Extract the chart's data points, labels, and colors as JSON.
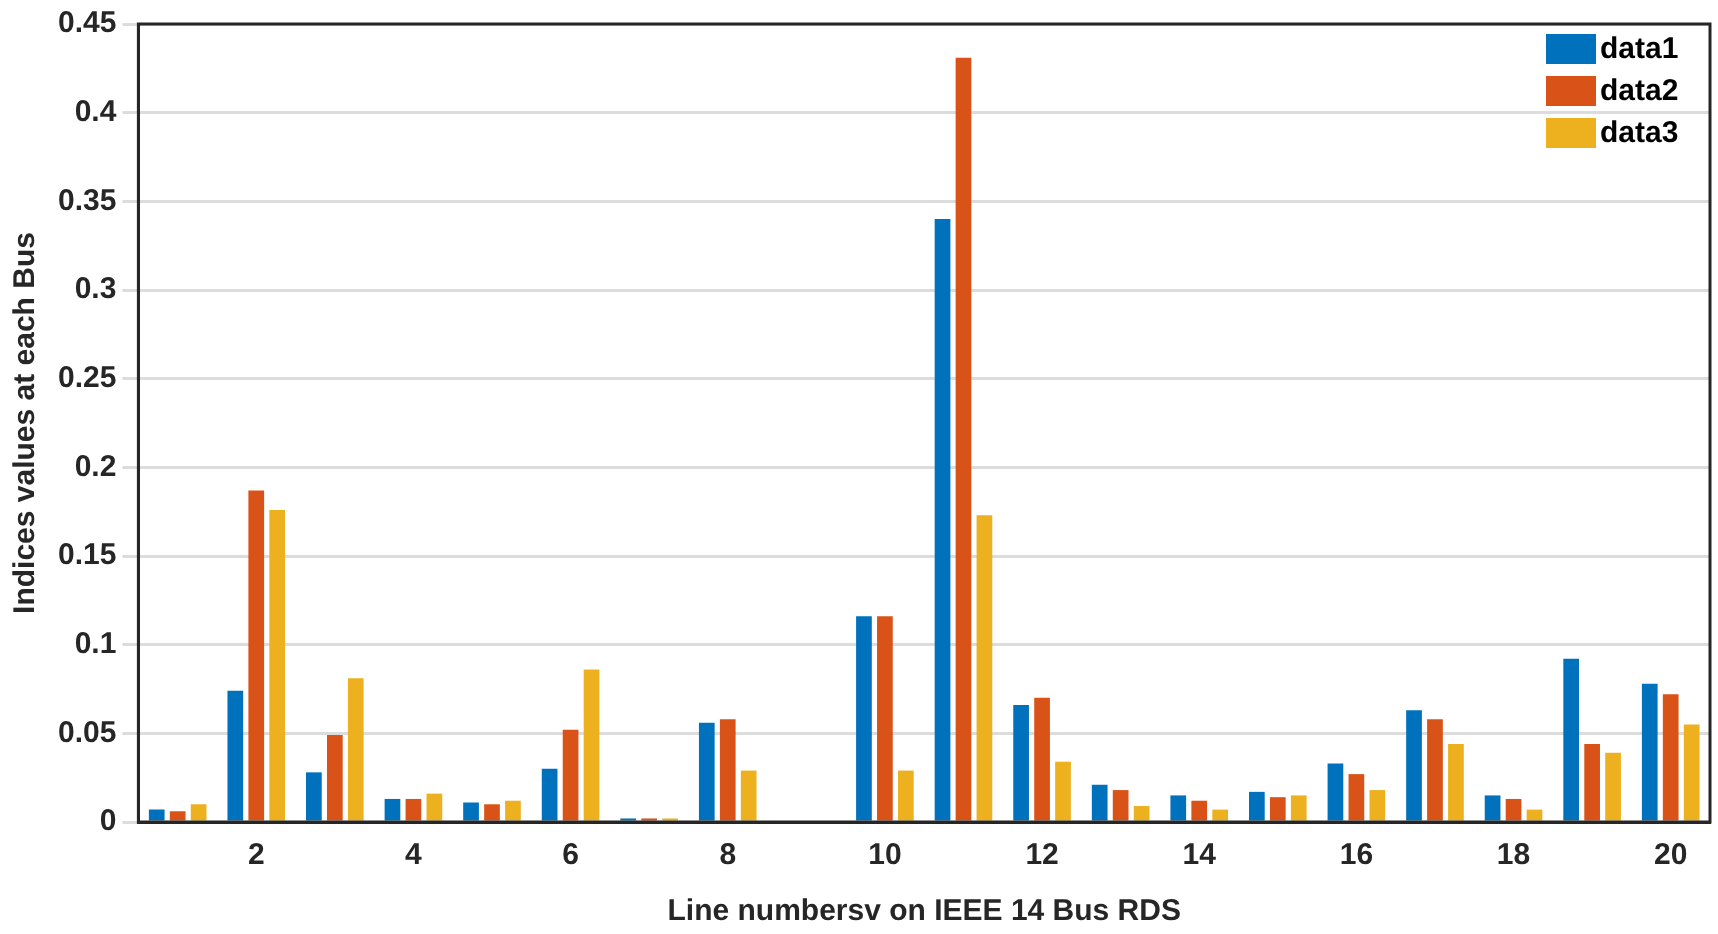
{
  "chart_data": {
    "type": "bar",
    "xlabel": "Line numbersv on IEEE 14 Bus RDS",
    "ylabel": "Indices values at each Bus",
    "categories": [
      null,
      "2",
      null,
      "4",
      null,
      "6",
      null,
      "8",
      null,
      "10",
      null,
      "12",
      null,
      "14",
      null,
      "16",
      null,
      "18",
      null,
      "20"
    ],
    "series": [
      {
        "name": "data1",
        "color": "#0072bd",
        "values": [
          0.007,
          0.074,
          0.028,
          0.013,
          0.011,
          0.03,
          0.002,
          0.056,
          0,
          0.116,
          0.34,
          0.066,
          0.021,
          0.015,
          0.017,
          0.033,
          0.063,
          0.015,
          0.092,
          0.078
        ]
      },
      {
        "name": "data2",
        "color": "#d95319",
        "values": [
          0.006,
          0.187,
          0.049,
          0.013,
          0.01,
          0.052,
          0.002,
          0.058,
          0,
          0.116,
          0.431,
          0.07,
          0.018,
          0.012,
          0.014,
          0.027,
          0.058,
          0.013,
          0.044,
          0.072
        ]
      },
      {
        "name": "data3",
        "color": "#edb120",
        "values": [
          0.01,
          0.176,
          0.081,
          0.016,
          0.012,
          0.086,
          0.002,
          0.029,
          0,
          0.029,
          0.173,
          0.034,
          0.009,
          0.007,
          0.015,
          0.018,
          0.044,
          0.007,
          0.039,
          0.055
        ]
      }
    ],
    "ylim": [
      0,
      0.45
    ],
    "yticks": [
      0,
      0.05,
      0.1,
      0.15,
      0.2,
      0.25,
      0.3,
      0.35,
      0.4,
      0.45
    ],
    "grid": "y",
    "legend": "top right"
  }
}
